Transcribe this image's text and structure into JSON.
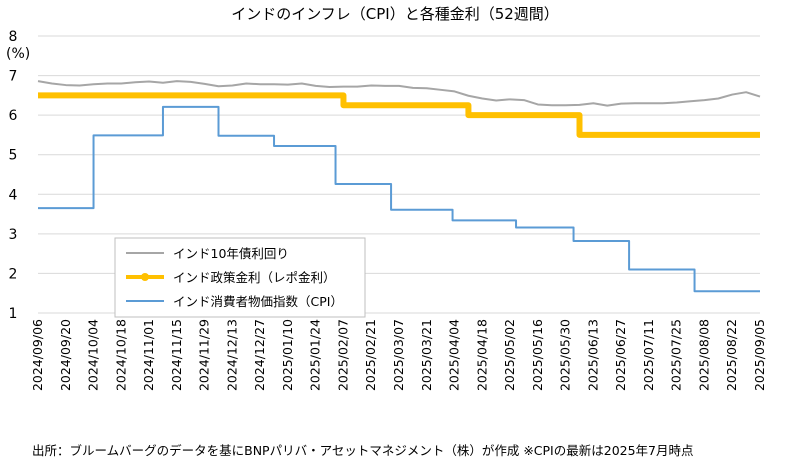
{
  "chart_data": {
    "type": "line",
    "title": "インドのインフレ（CPI）と各種金利（52週間）",
    "ylabel": "(%)",
    "ylim": [
      1,
      8
    ],
    "yticks": [
      1,
      2,
      3,
      4,
      5,
      6,
      7,
      8
    ],
    "grid": true,
    "legend_position": "bottom-left",
    "source": "出所：ブルームバーグのデータを基にBNPパリバ・アセットマネジメント（株）が作成 ※CPIの最新は2025年7月時点",
    "x_tick_labels": [
      "2024/09/06",
      "2024/09/20",
      "2024/10/04",
      "2024/10/18",
      "2024/11/01",
      "2024/11/15",
      "2024/11/29",
      "2024/12/13",
      "2024/12/27",
      "2025/01/10",
      "2025/01/24",
      "2025/02/07",
      "2025/02/21",
      "2025/03/07",
      "2025/03/21",
      "2025/04/04",
      "2025/04/18",
      "2025/05/02",
      "2025/05/16",
      "2025/05/30",
      "2025/06/13",
      "2025/06/27",
      "2025/07/11",
      "2025/07/25",
      "2025/08/08",
      "2025/08/22",
      "2025/09/05"
    ],
    "series": [
      {
        "name": "インド10年債利回り",
        "color": "#a6a6a6",
        "style": "line",
        "x": [
          "2024/09/06",
          "2024/09/13",
          "2024/09/20",
          "2024/09/27",
          "2024/10/04",
          "2024/10/11",
          "2024/10/18",
          "2024/10/25",
          "2024/11/01",
          "2024/11/08",
          "2024/11/15",
          "2024/11/22",
          "2024/11/29",
          "2024/12/06",
          "2024/12/13",
          "2024/12/20",
          "2024/12/27",
          "2025/01/03",
          "2025/01/10",
          "2025/01/17",
          "2025/01/24",
          "2025/01/31",
          "2025/02/07",
          "2025/02/14",
          "2025/02/21",
          "2025/02/28",
          "2025/03/07",
          "2025/03/14",
          "2025/03/21",
          "2025/03/28",
          "2025/04/04",
          "2025/04/11",
          "2025/04/18",
          "2025/04/25",
          "2025/05/02",
          "2025/05/09",
          "2025/05/16",
          "2025/05/23",
          "2025/05/30",
          "2025/06/06",
          "2025/06/13",
          "2025/06/20",
          "2025/06/27",
          "2025/07/04",
          "2025/07/11",
          "2025/07/18",
          "2025/07/25",
          "2025/08/01",
          "2025/08/08",
          "2025/08/15",
          "2025/08/22",
          "2025/08/29",
          "2025/09/05"
        ],
        "values": [
          6.86,
          6.8,
          6.76,
          6.75,
          6.78,
          6.8,
          6.8,
          6.83,
          6.85,
          6.82,
          6.86,
          6.84,
          6.79,
          6.73,
          6.75,
          6.8,
          6.78,
          6.78,
          6.77,
          6.8,
          6.74,
          6.71,
          6.72,
          6.72,
          6.75,
          6.74,
          6.74,
          6.69,
          6.68,
          6.64,
          6.6,
          6.49,
          6.42,
          6.37,
          6.4,
          6.38,
          6.27,
          6.25,
          6.25,
          6.26,
          6.3,
          6.24,
          6.29,
          6.3,
          6.3,
          6.3,
          6.32,
          6.35,
          6.38,
          6.42,
          6.52,
          6.58,
          6.47
        ]
      },
      {
        "name": "インド政策金利（レポ金利）",
        "color": "#ffc000",
        "style": "step",
        "x": [
          "2024/09/06",
          "2025/02/07",
          "2025/04/11",
          "2025/06/06",
          "2025/09/05"
        ],
        "values": [
          6.5,
          6.25,
          6.0,
          5.5,
          5.5
        ]
      },
      {
        "name": "インド消費者物価指数（CPI）",
        "color": "#5b9bd5",
        "style": "step",
        "x": [
          "2024/09/06",
          "2024/10/04",
          "2024/11/08",
          "2024/12/06",
          "2025/01/03",
          "2025/02/03",
          "2025/03/03",
          "2025/04/03",
          "2025/05/05",
          "2025/06/03",
          "2025/07/01",
          "2025/08/03",
          "2025/09/05"
        ],
        "values": [
          3.65,
          5.49,
          6.21,
          5.48,
          5.22,
          4.26,
          3.61,
          3.34,
          3.16,
          2.82,
          2.1,
          1.55,
          1.55
        ]
      }
    ]
  }
}
